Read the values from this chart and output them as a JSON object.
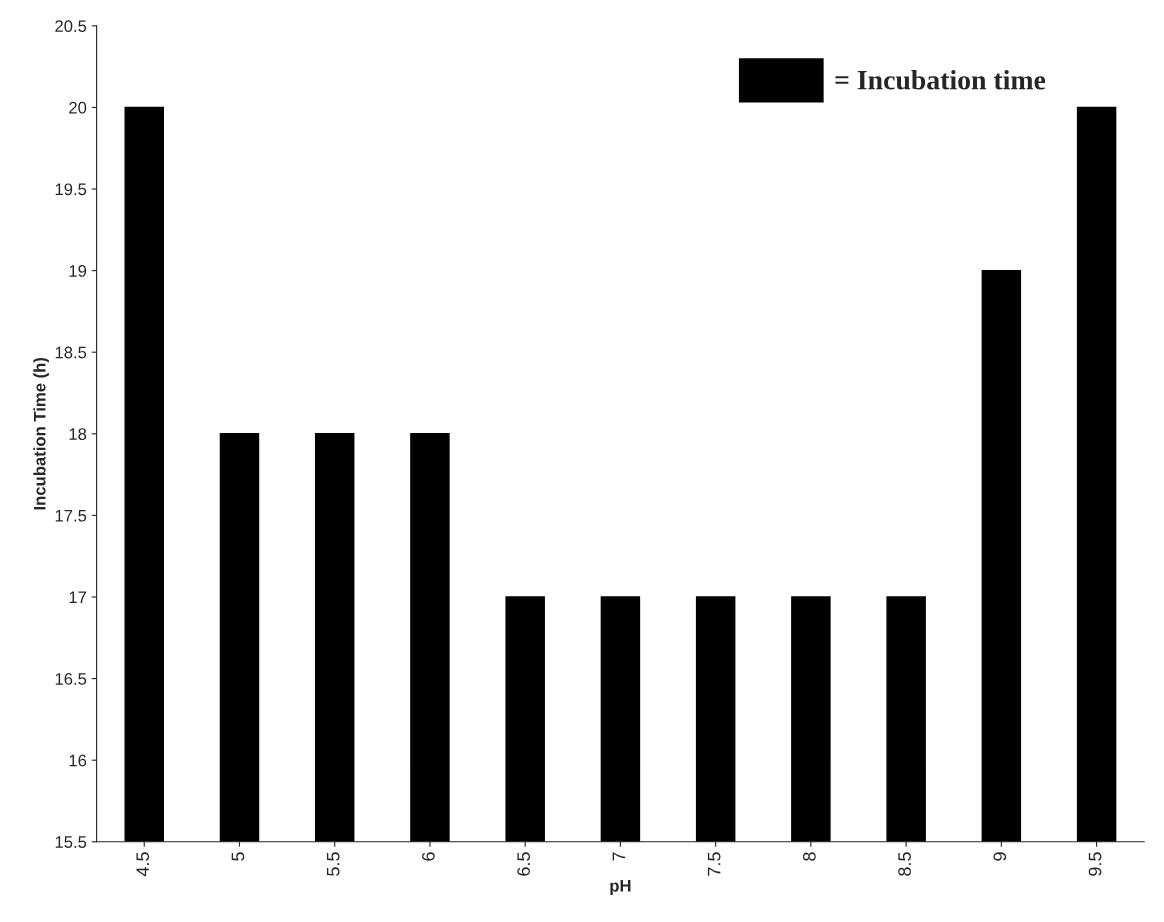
{
  "chart_data": {
    "type": "bar",
    "xlabel": "pH",
    "ylabel": "Incubation Time (h)",
    "categories": [
      "4.5",
      "5",
      "5.5",
      "6",
      "6.5",
      "7",
      "7.5",
      "8",
      "8.5",
      "9",
      "9.5"
    ],
    "series": [
      {
        "name": "= Incubation time",
        "color": "#000000",
        "values": [
          20,
          18,
          18,
          18,
          17,
          17,
          17,
          17,
          17,
          19,
          20
        ]
      }
    ],
    "ylim": [
      15.5,
      20.5
    ],
    "yticks": [
      15.5,
      16,
      16.5,
      17,
      17.5,
      18,
      18.5,
      19,
      19.5,
      20,
      20.5
    ],
    "grid": false,
    "legend": "top right"
  }
}
